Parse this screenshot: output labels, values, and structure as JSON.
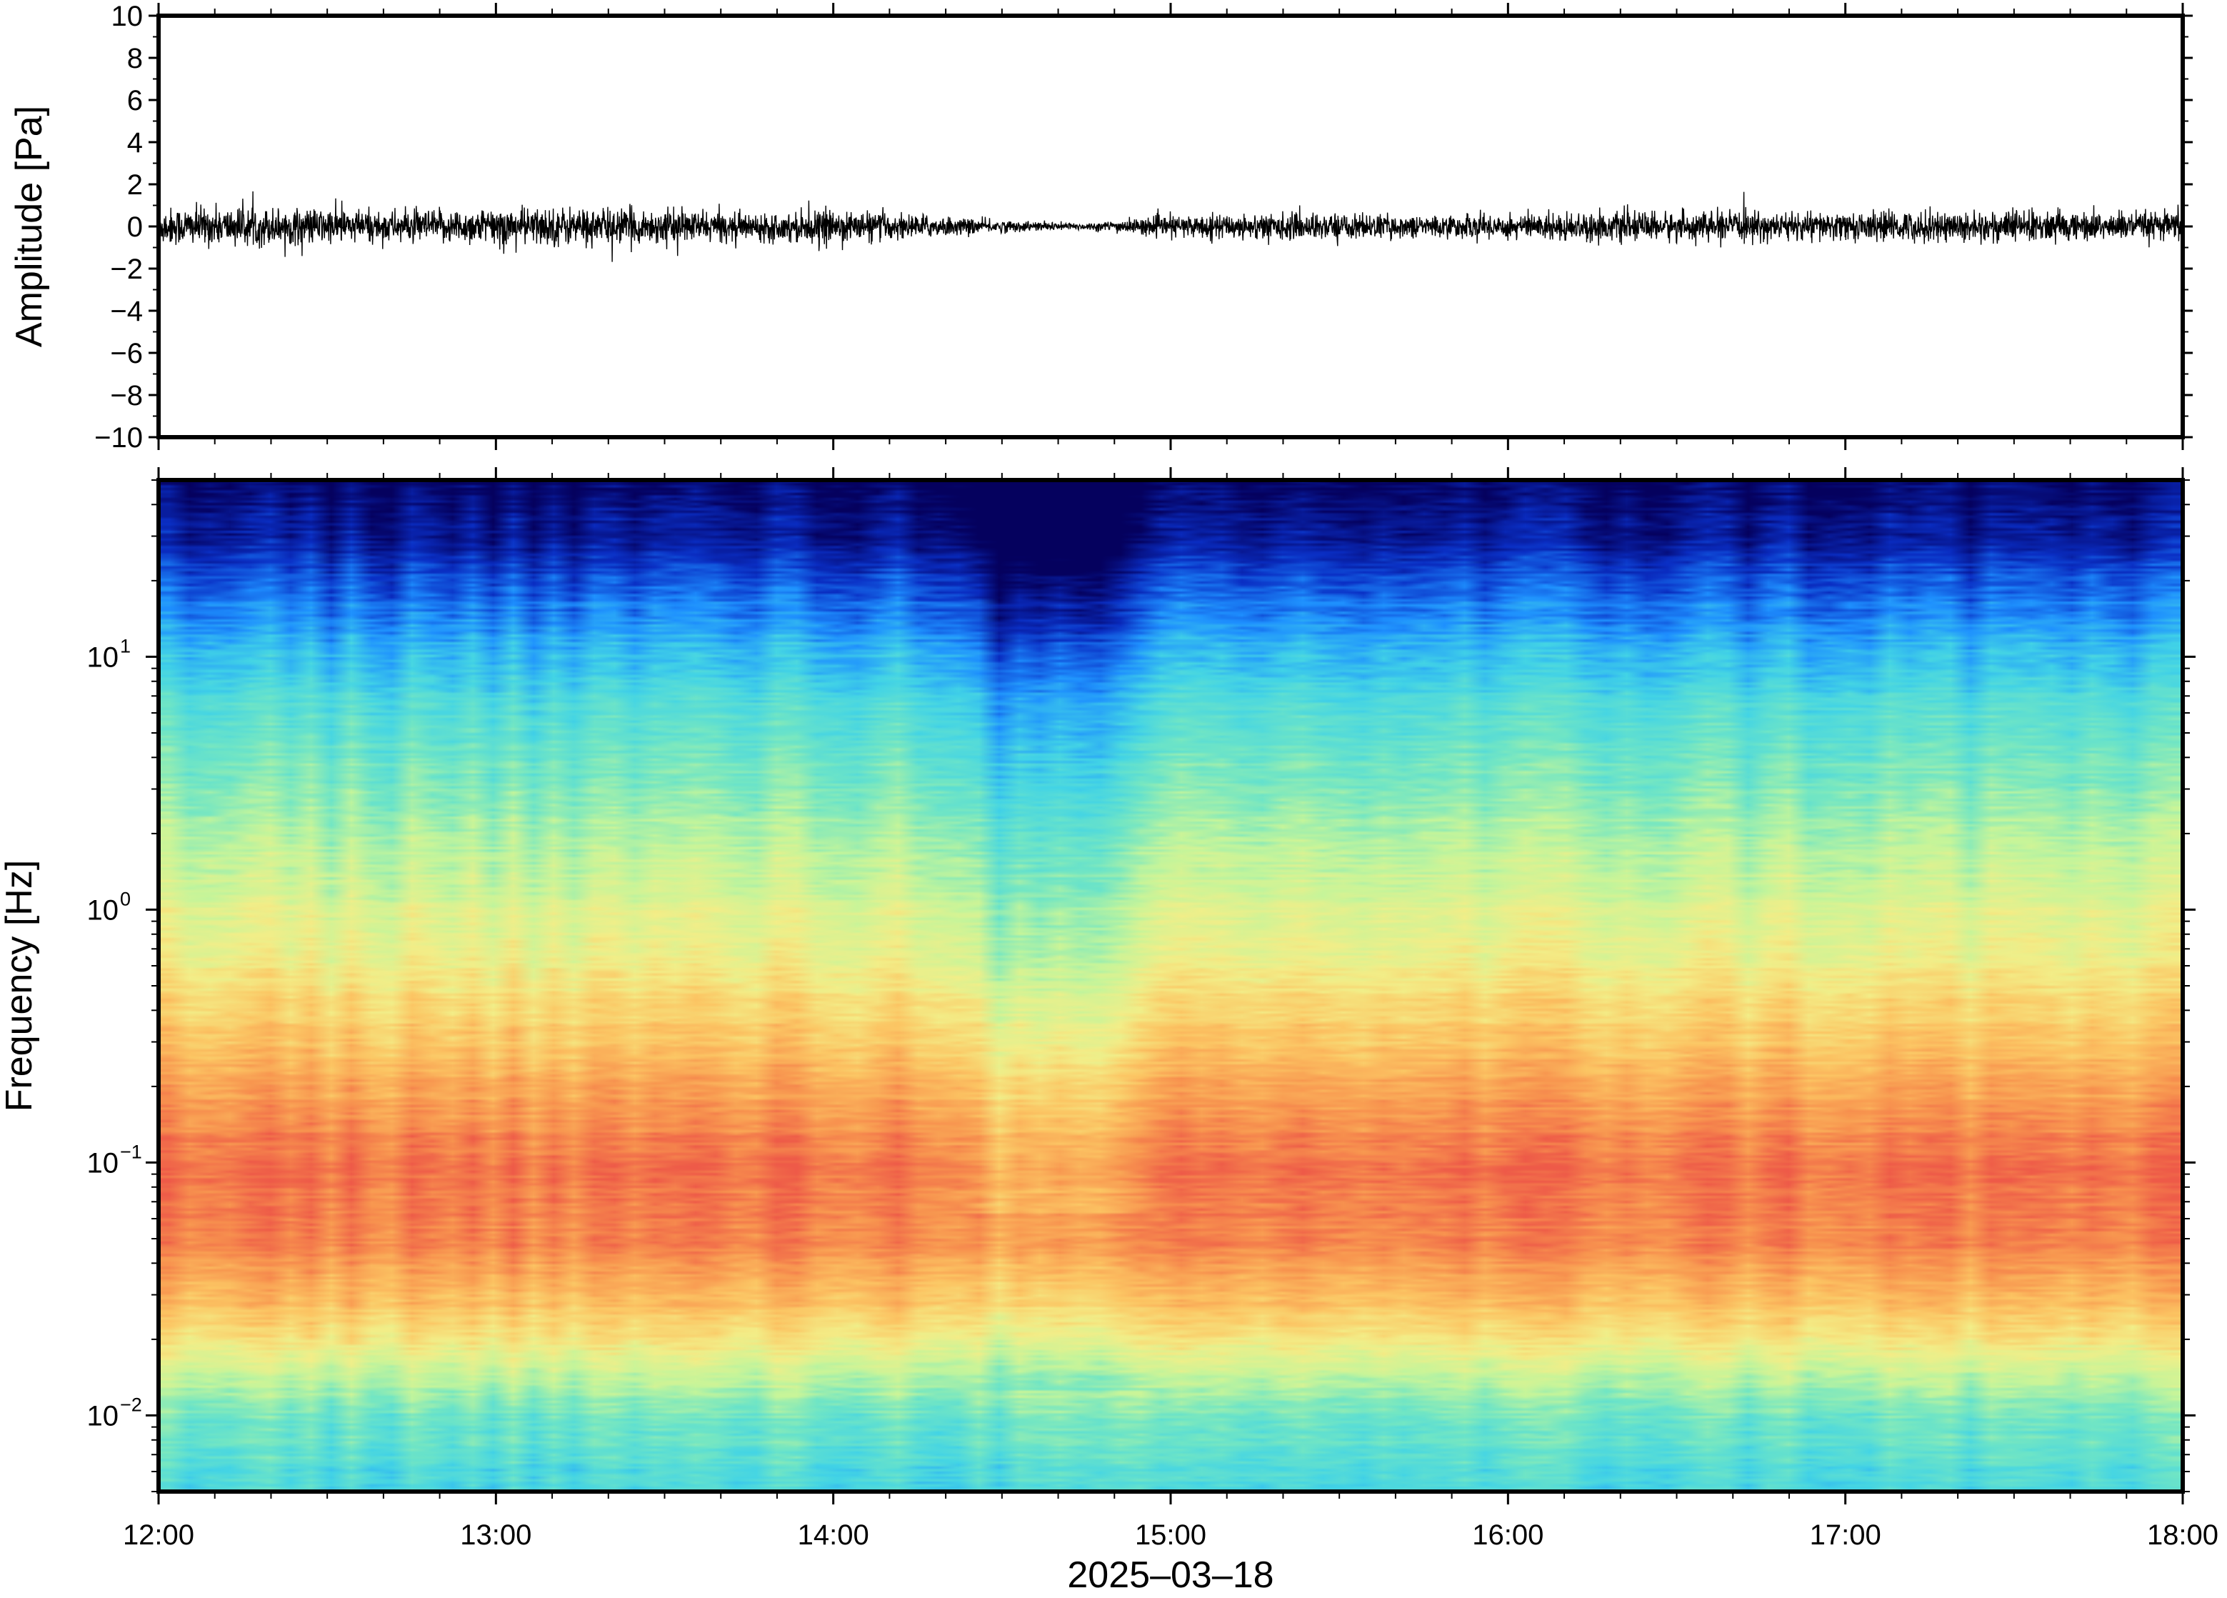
{
  "colors": {
    "frame": "#000000",
    "trace": "#000000",
    "background": "#ffffff"
  },
  "chart_data": [
    {
      "type": "line",
      "title": "",
      "xlabel": "",
      "ylabel": "Amplitude [Pa]",
      "ylim": [
        -10,
        10
      ],
      "xlim": [
        "12:00",
        "18:00"
      ],
      "x_tick_labels": [
        "12:00",
        "13:00",
        "14:00",
        "15:00",
        "16:00",
        "17:00",
        "18:00"
      ],
      "y_ticks": [
        -10,
        -8,
        -6,
        -4,
        -2,
        0,
        2,
        4,
        6,
        8,
        10
      ],
      "y_tick_labels": [
        "−10",
        "−8",
        "−6",
        "−4",
        "−2",
        "0",
        "2",
        "4",
        "6",
        "8",
        "10"
      ],
      "grid": false,
      "series": [
        {
          "style": "waveform",
          "x_hours": [
            12.0,
            12.25,
            12.5,
            12.75,
            13.0,
            13.25,
            13.5,
            13.75,
            14.0,
            14.25,
            14.5,
            14.75,
            15.0,
            15.25,
            15.5,
            15.75,
            16.0,
            16.25,
            16.5,
            16.75,
            17.0,
            17.25,
            17.5,
            17.75,
            18.0
          ],
          "envelope_amplitude": [
            0.8,
            0.8,
            0.75,
            0.65,
            0.8,
            0.8,
            0.7,
            0.55,
            0.7,
            0.5,
            0.25,
            0.15,
            0.45,
            0.55,
            0.55,
            0.45,
            0.55,
            0.6,
            0.6,
            0.6,
            0.6,
            0.65,
            0.7,
            0.6,
            0.6
          ],
          "peak_max": 1.7,
          "peak_min": -2.4
        }
      ]
    },
    {
      "type": "heatmap",
      "title": "",
      "xlabel": "2025–03–18",
      "ylabel": "Frequency [Hz]",
      "yscale": "log",
      "ylim": [
        0.005,
        50
      ],
      "xlim": [
        "12:00",
        "18:00"
      ],
      "x_tick_labels": [
        "12:00",
        "13:00",
        "14:00",
        "15:00",
        "16:00",
        "17:00",
        "18:00"
      ],
      "y_ticks": [
        {
          "base": "10",
          "exp": "−2",
          "value": 0.01
        },
        {
          "base": "10",
          "exp": "−1",
          "value": 0.1
        },
        {
          "base": "10",
          "exp": "0",
          "value": 1
        },
        {
          "base": "10",
          "exp": "1",
          "value": 10
        }
      ],
      "colormap": "jet-like",
      "colormap_stops": [
        "#05015e",
        "#0a2ec4",
        "#1e90ff",
        "#42d4e6",
        "#72e6c4",
        "#c6f59a",
        "#f3ee88",
        "#fcc563",
        "#f8954f",
        "#ee5a48"
      ],
      "quiet_interval": [
        "14:22",
        "14:58"
      ],
      "grid": false
    }
  ]
}
